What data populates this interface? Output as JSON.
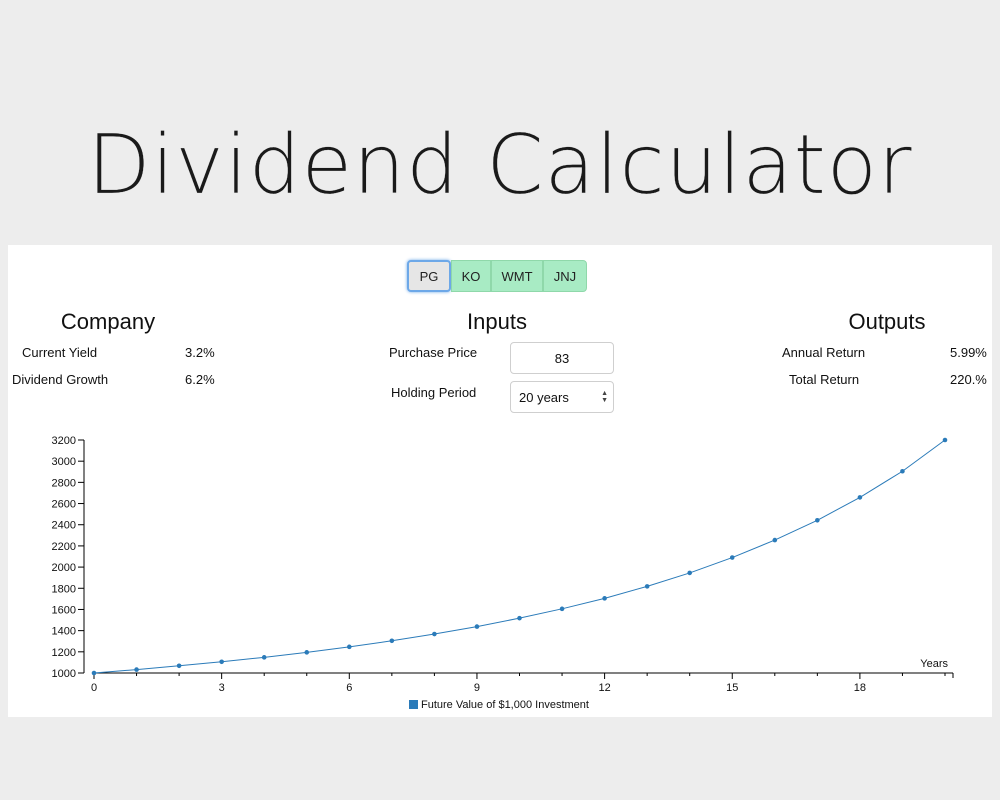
{
  "title": "Dividend Calculator",
  "tickers": [
    {
      "label": "PG",
      "selected": true
    },
    {
      "label": "KO",
      "selected": false
    },
    {
      "label": "WMT",
      "selected": false
    },
    {
      "label": "JNJ",
      "selected": false
    }
  ],
  "company": {
    "heading": "Company",
    "current_yield_label": "Current Yield",
    "current_yield_value": "3.2%",
    "dividend_growth_label": "Dividend Growth",
    "dividend_growth_value": "6.2%"
  },
  "inputs": {
    "heading": "Inputs",
    "purchase_price_label": "Purchase Price",
    "purchase_price_value": "83",
    "holding_period_label": "Holding Period",
    "holding_period_value": "20 years"
  },
  "outputs": {
    "heading": "Outputs",
    "annual_return_label": "Annual Return",
    "annual_return_value": "5.99%",
    "total_return_label": "Total Return",
    "total_return_value": "220.%"
  },
  "colors": {
    "series": "#2b7bb9",
    "ticker_bg": "#a8ebc4",
    "selected_border": "#6da8e8"
  },
  "chart_data": {
    "type": "line",
    "xlabel": "Years",
    "ylabel": "",
    "x": [
      0,
      1,
      2,
      3,
      4,
      5,
      6,
      7,
      8,
      9,
      10,
      11,
      12,
      13,
      14,
      15,
      16,
      17,
      18,
      19,
      20
    ],
    "series": [
      {
        "name": "Future Value of $1,000 Investment",
        "values": [
          1000,
          1032,
          1068,
          1106,
          1148,
          1195,
          1247,
          1304,
          1368,
          1438,
          1518,
          1606,
          1705,
          1818,
          1945,
          2090,
          2255,
          2442,
          2658,
          2905,
          3200
        ]
      }
    ],
    "xlim": [
      0,
      20
    ],
    "ylim": [
      1000,
      3200
    ],
    "xticks": [
      0,
      3,
      6,
      9,
      12,
      15,
      18
    ],
    "yticks": [
      1000,
      1200,
      1400,
      1600,
      1800,
      2000,
      2200,
      2400,
      2600,
      2800,
      3000,
      3200
    ],
    "grid": false,
    "legend": "bottom-center"
  }
}
